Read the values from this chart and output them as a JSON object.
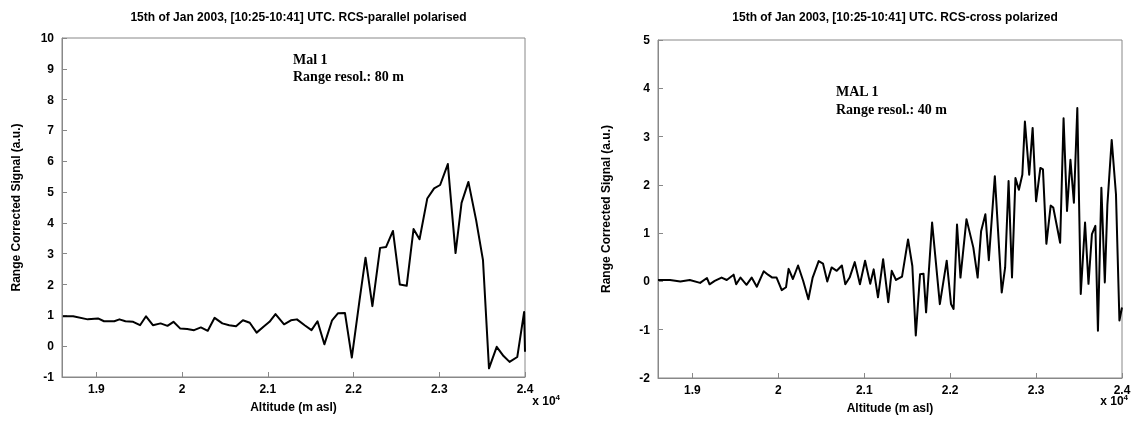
{
  "chart_data": [
    {
      "type": "line",
      "title": "15th of Jan 2003, [10:25-10:41] UTC. RCS-parallel polarised",
      "xlabel": "Altitude (m asl)",
      "ylabel": "Range Corrected Signal (a.u.)",
      "annotations": [
        "Mal 1",
        "Range resol.: 80 m",
        "x 10$^{4}$"
      ],
      "xlim": [
        1.86,
        2.4
      ],
      "xticks": [
        1.9,
        2,
        2.1,
        2.2,
        2.3,
        2.4
      ],
      "ylim": [
        -1,
        10
      ],
      "yticks": [
        -1,
        0,
        1,
        2,
        3,
        4,
        5,
        6,
        7,
        8,
        9,
        10
      ],
      "grid": false,
      "marker": "none",
      "line_style": "solid",
      "series": [
        {
          "color": "#000000",
          "x": [
            1.861,
            1.873,
            1.89,
            1.902,
            1.909,
            1.921,
            1.927,
            1.934,
            1.943,
            1.951,
            1.958,
            1.966,
            1.975,
            1.983,
            1.99,
            1.998,
            2.006,
            2.014,
            2.022,
            2.03,
            2.038,
            2.047,
            2.055,
            2.063,
            2.071,
            2.079,
            2.087,
            2.095,
            2.102,
            2.109,
            2.119,
            2.127,
            2.134,
            2.143,
            2.151,
            2.158,
            2.166,
            2.175,
            2.182,
            2.19,
            2.198,
            2.207,
            2.214,
            2.222,
            2.231,
            2.238,
            2.246,
            2.254,
            2.262,
            2.27,
            2.277,
            2.286,
            2.294,
            2.301,
            2.31,
            2.319,
            2.326,
            2.334,
            2.343,
            2.351,
            2.358,
            2.367,
            2.375,
            2.382,
            2.391,
            2.399,
            2.4
          ],
          "values": [
            0.97,
            0.97,
            0.87,
            0.9,
            0.81,
            0.81,
            0.87,
            0.81,
            0.79,
            0.68,
            0.97,
            0.68,
            0.74,
            0.66,
            0.79,
            0.57,
            0.56,
            0.52,
            0.61,
            0.5,
            0.92,
            0.74,
            0.68,
            0.65,
            0.84,
            0.76,
            0.44,
            0.63,
            0.79,
            1.04,
            0.71,
            0.84,
            0.87,
            0.68,
            0.52,
            0.81,
            0.06,
            0.84,
            1.07,
            1.08,
            -0.37,
            1.49,
            2.87,
            1.3,
            3.19,
            3.22,
            3.74,
            2.0,
            1.96,
            3.8,
            3.47,
            4.79,
            5.12,
            5.23,
            5.91,
            3.02,
            4.65,
            5.33,
            4.09,
            2.79,
            -0.72,
            -0.02,
            -0.32,
            -0.51,
            -0.35,
            1.11,
            -0.18
          ]
        }
      ]
    },
    {
      "type": "line",
      "title": "15th of Jan 2003, [10:25-10:41] UTC. RCS-cross polarized",
      "xlabel": "Altitude (m asl)",
      "ylabel": "Range Corrected Signal (a.u.)",
      "annotations": [
        "MAL 1",
        "Range resol.: 40 m",
        "x 10$^{4}$"
      ],
      "xlim": [
        1.86,
        2.4
      ],
      "xticks": [
        1.9,
        2,
        2.1,
        2.2,
        2.3,
        2.4
      ],
      "ylim": [
        -2,
        5
      ],
      "yticks": [
        -2,
        -1,
        0,
        1,
        2,
        3,
        4,
        5
      ],
      "grid": false,
      "marker": "none",
      "line_style": "solid",
      "series": [
        {
          "color": "#000000",
          "x": [
            1.86,
            1.874,
            1.886,
            1.897,
            1.909,
            1.917,
            1.92,
            1.926,
            1.934,
            1.94,
            1.948,
            1.951,
            1.956,
            1.963,
            1.969,
            1.975,
            1.983,
            1.988,
            1.993,
            1.998,
            2.004,
            2.009,
            2.012,
            2.017,
            2.023,
            2.029,
            2.035,
            2.04,
            2.047,
            2.052,
            2.057,
            2.062,
            2.068,
            2.074,
            2.078,
            2.083,
            2.089,
            2.095,
            2.101,
            2.107,
            2.111,
            2.116,
            2.122,
            2.128,
            2.132,
            2.137,
            2.144,
            2.151,
            2.156,
            2.16,
            2.165,
            2.169,
            2.172,
            2.179,
            2.188,
            2.196,
            2.201,
            2.204,
            2.208,
            2.212,
            2.219,
            2.227,
            2.232,
            2.236,
            2.241,
            2.245,
            2.252,
            2.26,
            2.264,
            2.268,
            2.272,
            2.276,
            2.28,
            2.284,
            2.287,
            2.292,
            2.296,
            2.3,
            2.305,
            2.308,
            2.312,
            2.317,
            2.32,
            2.328,
            2.332,
            2.336,
            2.34,
            2.344,
            2.348,
            2.352,
            2.357,
            2.361,
            2.365,
            2.369,
            2.372,
            2.376,
            2.38,
            2.383,
            2.388,
            2.393,
            2.397,
            2.4
          ],
          "values": [
            0.03,
            0.03,
            0,
            0.03,
            -0.03,
            0.07,
            -0.06,
            0.01,
            0.08,
            0.03,
            0.14,
            -0.06,
            0.08,
            -0.07,
            0.08,
            -0.11,
            0.21,
            0.14,
            0.08,
            0.08,
            -0.18,
            -0.12,
            0.26,
            0.05,
            0.33,
            0.01,
            -0.37,
            0.08,
            0.42,
            0.37,
            0,
            0.29,
            0.22,
            0.33,
            -0.06,
            0.08,
            0.4,
            -0.06,
            0.43,
            -0.05,
            0.25,
            -0.33,
            0.46,
            -0.43,
            0.22,
            0.03,
            0.1,
            0.87,
            0.32,
            -1.12,
            0.15,
            0.16,
            -0.64,
            1.22,
            -0.47,
            0.43,
            -0.47,
            -0.57,
            1.18,
            0.08,
            1.29,
            0.7,
            0.08,
            1.04,
            1.39,
            0.44,
            2.18,
            -0.23,
            0.29,
            2.08,
            0.08,
            2.14,
            1.9,
            2.21,
            3.31,
            2.21,
            3.18,
            1.66,
            2.35,
            2.32,
            0.78,
            1.57,
            1.53,
            0.8,
            3.38,
            1.46,
            2.52,
            1.63,
            3.59,
            -0.26,
            1.22,
            -0.05,
            0.98,
            1.15,
            -1.02,
            1.94,
            -0.02,
            1.59,
            2.93,
            1.8,
            -0.81,
            -0.54
          ]
        }
      ]
    }
  ]
}
